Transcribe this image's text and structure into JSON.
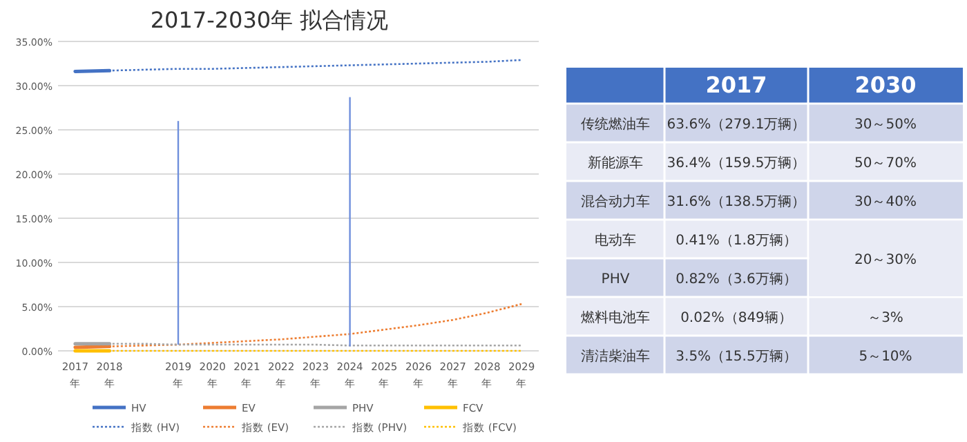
{
  "chart_data": [
    {
      "type": "line",
      "title": "2017-2030年 拟合情况",
      "categories": [
        "2017\n年",
        "2018\n年",
        null,
        "2019\n年",
        "2020\n年",
        "2021\n年",
        "2022\n年",
        "2023\n年",
        "2024\n年",
        "2025\n年",
        "2026\n年",
        "2027\n年",
        "2028\n年",
        "2029\n年"
      ],
      "ylim": [
        0,
        35
      ],
      "yticks": [
        {
          "value": 0,
          "label": "0.00%"
        },
        {
          "value": 5,
          "label": "5.00%"
        },
        {
          "value": 10,
          "label": "10.00%"
        },
        {
          "value": 15,
          "label": "15.00%"
        },
        {
          "value": 20,
          "label": "20.00%"
        },
        {
          "value": 25,
          "label": "25.00%"
        },
        {
          "value": 30,
          "label": "30.00%"
        },
        {
          "value": 35,
          "label": "35.00%"
        }
      ],
      "grid": "y",
      "legend": "bottom",
      "marker": "none",
      "series": [
        {
          "name": "HV",
          "color": "#4472c4",
          "line_style": "solid",
          "values": [
            31.6,
            31.7,
            null,
            null,
            null,
            null,
            null,
            null,
            null,
            null,
            null,
            null,
            null,
            null
          ]
        },
        {
          "name": "EV",
          "color": "#ed7d31",
          "line_style": "solid",
          "values": [
            0.4,
            0.5,
            null,
            null,
            null,
            null,
            null,
            null,
            null,
            null,
            null,
            null,
            null,
            null
          ]
        },
        {
          "name": "PHV",
          "color": "#a5a5a5",
          "line_style": "solid",
          "values": [
            0.8,
            0.8,
            null,
            null,
            null,
            null,
            null,
            null,
            null,
            null,
            null,
            null,
            null,
            null
          ]
        },
        {
          "name": "FCV",
          "color": "#ffc000",
          "line_style": "solid",
          "values": [
            0.0,
            0.0,
            null,
            null,
            null,
            null,
            null,
            null,
            null,
            null,
            null,
            null,
            null,
            null
          ]
        },
        {
          "name": "指数 (HV)",
          "color": "#4472c4",
          "line_style": "dotted",
          "values": [
            31.6,
            31.7,
            31.8,
            31.9,
            31.9,
            32.0,
            32.1,
            32.2,
            32.3,
            32.4,
            32.5,
            32.6,
            32.7,
            32.9
          ]
        },
        {
          "name": "指数 (EV)",
          "color": "#ed7d31",
          "line_style": "dotted",
          "values": [
            0.4,
            0.5,
            0.6,
            0.7,
            0.9,
            1.1,
            1.3,
            1.6,
            1.9,
            2.4,
            2.9,
            3.5,
            4.3,
            5.3
          ]
        },
        {
          "name": "指数 (PHV)",
          "color": "#a5a5a5",
          "line_style": "dotted",
          "values": [
            0.8,
            0.8,
            0.8,
            0.7,
            0.7,
            0.7,
            0.7,
            0.7,
            0.6,
            0.6,
            0.6,
            0.6,
            0.6,
            0.6
          ]
        },
        {
          "name": "指数 (FCV)",
          "color": "#ffc000",
          "line_style": "dotted",
          "values": [
            0.0,
            0.0,
            0.0,
            0.0,
            0.0,
            0.0,
            0.0,
            0.0,
            0.0,
            0.0,
            0.0,
            0.0,
            0.0,
            0.0
          ]
        },
        {
          "type": "bar",
          "color": "#6f8fdc",
          "base": [
            null,
            null,
            null,
            0.7,
            null,
            null,
            null,
            null,
            0.5,
            null,
            null,
            null,
            null,
            null
          ],
          "values": [
            null,
            null,
            null,
            25.3,
            null,
            null,
            null,
            null,
            28.2,
            null,
            null,
            null,
            null,
            null
          ]
        }
      ]
    },
    {
      "type": "other",
      "categories": [
        "2017",
        "2030"
      ],
      "y_categories": [
        "传统燃油车",
        "新能源车",
        "混合动力车",
        "电动车",
        "PHV",
        "燃料电池车",
        "清洁柴油车"
      ],
      "cell_labels": [
        [
          "63.6%（279.1万辆）",
          "30～50%"
        ],
        [
          "36.4%（159.5万辆）",
          "50～70%"
        ],
        [
          "31.6%（138.5万辆）",
          "30～40%"
        ],
        [
          "0.41%（1.8万辆）",
          "20～30%"
        ],
        [
          "0.82%（3.6万辆）",
          null
        ],
        [
          "0.02%（849辆）",
          "～3%"
        ],
        [
          "3.5%（15.5万辆）",
          "5～10%"
        ]
      ]
    }
  ]
}
